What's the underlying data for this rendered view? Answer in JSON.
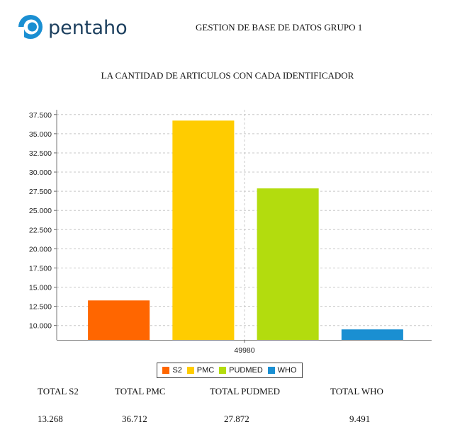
{
  "header": {
    "logo_text": "pentaho",
    "title": "GESTION DE BASE DE DATOS GRUPO 1"
  },
  "chart_data": {
    "type": "bar",
    "title": "LA CANTIDAD DE ARTICULOS CON CADA IDENTIFICADOR",
    "categories": [
      "49980"
    ],
    "series": [
      {
        "name": "S2",
        "values": [
          13268
        ],
        "color": "#ff6600"
      },
      {
        "name": "PMC",
        "values": [
          36712
        ],
        "color": "#ffcc00"
      },
      {
        "name": "PUDMED",
        "values": [
          27872
        ],
        "color": "#b3dc0e"
      },
      {
        "name": "WHO",
        "values": [
          9491
        ],
        "color": "#1a8fd2"
      }
    ],
    "ylim": [
      8125,
      38125
    ],
    "yticks": [
      "10.000",
      "12.500",
      "15.000",
      "17.500",
      "20.000",
      "22.500",
      "25.000",
      "27.500",
      "30.000",
      "32.500",
      "35.000",
      "37.500"
    ],
    "ytick_values": [
      10000,
      12500,
      15000,
      17500,
      20000,
      22500,
      25000,
      27500,
      30000,
      32500,
      35000,
      37500
    ],
    "grid": true,
    "legend_position": "bottom"
  },
  "totals": {
    "headers": [
      "TOTAL S2",
      "TOTAL PMC",
      "TOTAL PUDMED",
      "TOTAL WHO"
    ],
    "values": [
      "13.268",
      "36.712",
      "27.872",
      "9.491"
    ]
  }
}
